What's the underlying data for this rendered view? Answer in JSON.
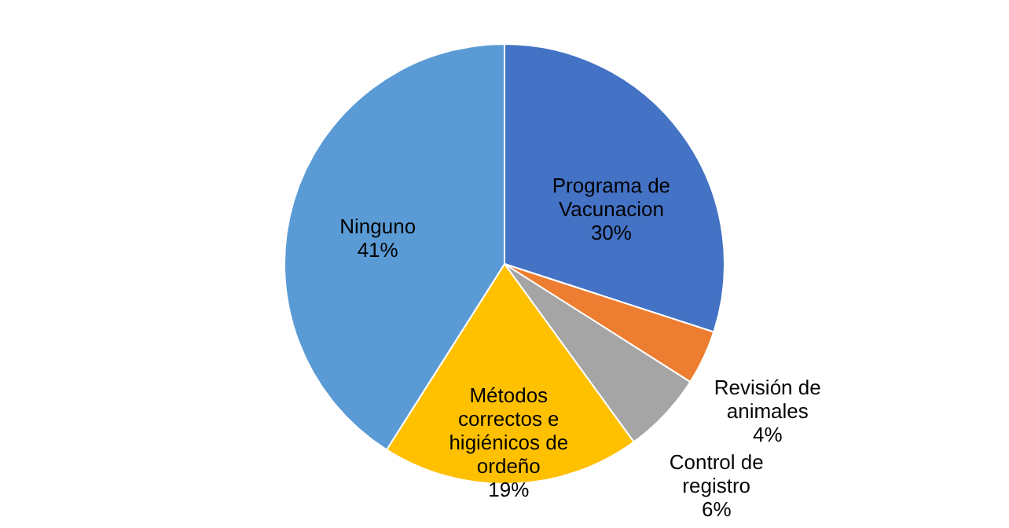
{
  "chart_data": {
    "type": "pie",
    "categories": [
      "Programa de Vacunacion",
      "Revisión de animales",
      "Control de registro",
      "Métodos correctos e higiénicos de ordeño",
      "Ninguno"
    ],
    "values": [
      30,
      4,
      6,
      19,
      41
    ],
    "value_labels": [
      "30%",
      "4%",
      "6%",
      "19%",
      "41%"
    ],
    "colors": [
      "#4472c4",
      "#ed7d31",
      "#a5a5a5",
      "#ffc000",
      "#5b9bd5"
    ],
    "legend": false
  }
}
